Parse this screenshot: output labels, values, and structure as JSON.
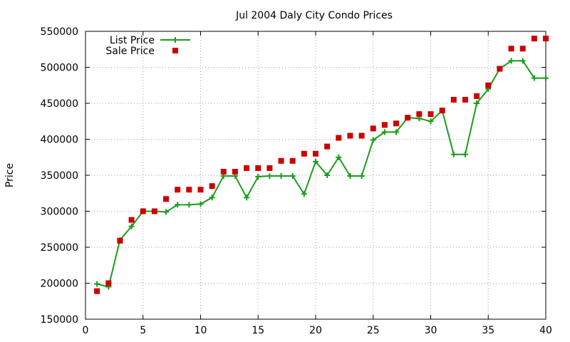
{
  "chart_data": {
    "type": "line",
    "title": "Jul 2004 Daly City Condo Prices",
    "xlabel": "",
    "ylabel": "Price",
    "xlim": [
      0,
      40
    ],
    "ylim": [
      150000,
      550000
    ],
    "x_ticks": [
      0,
      5,
      10,
      15,
      20,
      25,
      30,
      35,
      40
    ],
    "x_tick_labels": [
      "0",
      "5",
      "10",
      "15",
      "20",
      "25",
      "30",
      "35",
      "40"
    ],
    "y_ticks": [
      150000,
      200000,
      250000,
      300000,
      350000,
      400000,
      450000,
      500000,
      550000
    ],
    "y_tick_labels": [
      "150000",
      "200000",
      "250000",
      "300000",
      "350000",
      "400000",
      "450000",
      "500000",
      "550000"
    ],
    "grid": true,
    "legend_position": "top-left",
    "series": [
      {
        "name": "List Price",
        "style": "line-with-plus-markers",
        "color": "#1a9e1a",
        "x": [
          1,
          2,
          3,
          4,
          5,
          6,
          7,
          8,
          9,
          10,
          11,
          12,
          13,
          14,
          15,
          16,
          17,
          18,
          19,
          20,
          21,
          22,
          23,
          24,
          25,
          26,
          27,
          28,
          29,
          30,
          31,
          32,
          33,
          34,
          35,
          36,
          37,
          38,
          39,
          40
        ],
        "values": [
          199000,
          195000,
          260000,
          279000,
          300000,
          300000,
          299000,
          309000,
          309000,
          310000,
          319000,
          349000,
          349000,
          319000,
          348000,
          349000,
          349000,
          349000,
          324000,
          369000,
          350000,
          375000,
          349000,
          349000,
          399000,
          410000,
          410000,
          430000,
          429000,
          425000,
          440000,
          379000,
          379000,
          450000,
          470000,
          498000,
          509000,
          509000,
          485000,
          485000
        ]
      },
      {
        "name": "Sale Price",
        "style": "square-markers",
        "color": "#cc0000",
        "x": [
          1,
          2,
          3,
          4,
          5,
          6,
          7,
          8,
          9,
          10,
          11,
          12,
          13,
          14,
          15,
          16,
          17,
          18,
          19,
          20,
          21,
          22,
          23,
          24,
          25,
          26,
          27,
          28,
          29,
          30,
          31,
          32,
          33,
          34,
          35,
          36,
          37,
          38,
          39,
          40
        ],
        "values": [
          189000,
          200000,
          259000,
          288000,
          300000,
          300000,
          317000,
          330000,
          330000,
          330000,
          335000,
          355000,
          355000,
          360000,
          360000,
          360000,
          370000,
          370000,
          380000,
          380000,
          390000,
          402000,
          405000,
          405000,
          415000,
          420000,
          422000,
          430000,
          435000,
          435000,
          440000,
          455000,
          455000,
          460000,
          475000,
          498000,
          526000,
          526000,
          540000,
          540000
        ]
      }
    ]
  }
}
